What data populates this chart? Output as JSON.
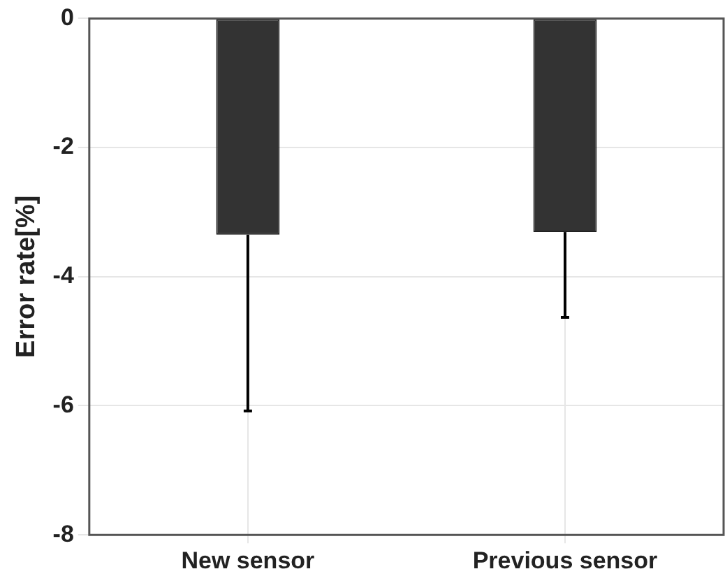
{
  "chart_data": {
    "type": "bar",
    "ylabel": "Error rate[%]",
    "categories": [
      "New sensor",
      "Previous sensor"
    ],
    "values": [
      -3.35,
      -3.31
    ],
    "color": "#333333",
    "errors": [
      [
        -6.08,
        -3.35
      ],
      [
        -4.63,
        -3.31
      ]
    ],
    "ylim": [
      -8,
      0
    ],
    "yticks": [
      -8,
      -6,
      -4,
      -2,
      0
    ],
    "grid": true,
    "legend": false
  }
}
